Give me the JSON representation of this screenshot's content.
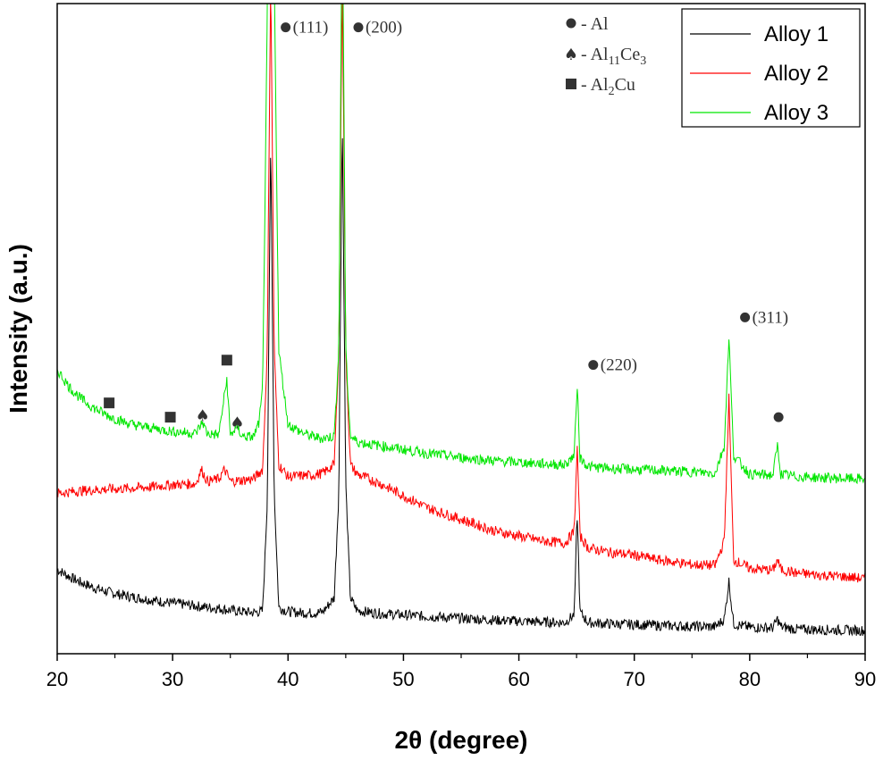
{
  "chart_data": {
    "type": "line",
    "xlabel": "2θ (degree)",
    "ylabel": "Intensity (a.u.)",
    "xlim": [
      20,
      90
    ],
    "x_ticks": [
      "20",
      "30",
      "40",
      "50",
      "60",
      "70",
      "80",
      "90"
    ],
    "y_ticks_labeled": false,
    "grid": false,
    "legend_position": "top-right",
    "series": [
      {
        "name": "Alloy 1",
        "color": "#000000",
        "x": [
          20,
          21,
          22,
          23,
          24,
          25,
          26,
          27,
          28,
          29,
          30,
          31,
          32,
          33,
          34,
          35,
          36,
          37,
          37.8,
          38.2,
          38.5,
          38.8,
          39.2,
          40,
          41,
          42,
          43,
          44,
          44.4,
          44.7,
          45,
          45.4,
          46,
          48,
          50,
          52,
          55,
          58,
          60,
          62,
          64,
          64.8,
          65.05,
          65.3,
          66,
          68,
          70,
          72,
          75,
          77,
          77.8,
          78.2,
          78.6,
          80,
          82,
          82.4,
          82.7,
          84,
          86,
          88,
          90
        ],
        "y": [
          14,
          12.5,
          11.3,
          10.3,
          9.5,
          8.9,
          8.4,
          8,
          7.6,
          7.2,
          6.9,
          6.6,
          6.3,
          6,
          5.8,
          5.4,
          5.1,
          4.9,
          5.2,
          28,
          105,
          30,
          6,
          5.1,
          4.9,
          4.8,
          5,
          8,
          30,
          110,
          32,
          8,
          5.3,
          4.7,
          4.4,
          4.1,
          3.7,
          3.3,
          3.1,
          2.9,
          2.8,
          4.5,
          26,
          5,
          2.8,
          2.5,
          2.4,
          2.2,
          2,
          1.9,
          3.5,
          11.5,
          2.5,
          1.8,
          1.7,
          3.5,
          1.9,
          1.4,
          1.3,
          1.2,
          1.1
        ]
      },
      {
        "name": "Alloy 2",
        "color": "#ff0000",
        "x": [
          20,
          22,
          24,
          26,
          28,
          30,
          32,
          32.5,
          33,
          34,
          34.5,
          35,
          36,
          37,
          37.8,
          38.2,
          38.5,
          38.8,
          39.2,
          40,
          42,
          43,
          44,
          44.4,
          44.7,
          45,
          45.4,
          46,
          48,
          50,
          52,
          55,
          58,
          60,
          62,
          64,
          64.8,
          65.05,
          65.3,
          66,
          68,
          70,
          72,
          75,
          77,
          77.8,
          78.2,
          78.6,
          80,
          82,
          82.4,
          82.7,
          84,
          86,
          88,
          90
        ],
        "y": [
          30,
          30.5,
          30.8,
          31,
          31.3,
          31.8,
          32,
          35,
          32.5,
          33,
          35,
          32.5,
          32.7,
          33,
          35,
          60,
          140,
          60,
          36,
          33.5,
          33.8,
          34.2,
          36,
          60,
          140,
          60,
          36,
          34,
          32,
          29.5,
          27,
          24.5,
          22,
          21,
          20,
          19.5,
          22,
          40,
          21,
          18.5,
          17.5,
          17,
          16,
          15,
          14.8,
          20,
          50,
          16,
          14.2,
          13.8,
          16,
          14,
          13.2,
          12.8,
          12.5,
          12
        ]
      },
      {
        "name": "Alloy 3",
        "color": "#00e600",
        "x": [
          20,
          21,
          22,
          23,
          24,
          25,
          26,
          27,
          28,
          29,
          30,
          31,
          32,
          32.6,
          33,
          34,
          34.7,
          35,
          35.6,
          36,
          37,
          37.5,
          37.8,
          38.2,
          38.5,
          38.8,
          39.2,
          40,
          41,
          42,
          43,
          44,
          44.4,
          44.7,
          45,
          45.4,
          46,
          48,
          50,
          52,
          55,
          58,
          60,
          62,
          64,
          64.8,
          65.05,
          65.3,
          66,
          68,
          70,
          72,
          75,
          77,
          77.8,
          78.2,
          78.6,
          80,
          82,
          82.4,
          82.7,
          84,
          86,
          88,
          90
        ],
        "y": [
          56,
          52.5,
          50,
          48.2,
          46.8,
          45.7,
          44.8,
          44.2,
          43.8,
          43.4,
          43,
          42.8,
          42.6,
          45,
          42.5,
          42.3,
          54,
          42.2,
          44,
          42,
          41.8,
          45,
          52,
          130,
          240,
          140,
          60,
          44.5,
          43,
          42,
          41.5,
          42,
          60,
          160,
          60,
          42,
          40.8,
          40,
          39.2,
          38.4,
          37.5,
          36.8,
          36.5,
          36.2,
          36,
          38,
          53,
          37.5,
          35.6,
          35.2,
          35,
          34.8,
          34.5,
          34.2,
          40,
          63,
          38,
          34,
          33.8,
          40,
          34,
          33.5,
          33.3,
          33.1,
          33
        ]
      }
    ],
    "y_range": [
      0,
      130
    ],
    "annotations": [
      {
        "marker": "circle",
        "text": "(111)",
        "x": 38.4,
        "y": 128
      },
      {
        "marker": "circle",
        "text": "(200)",
        "x": 44.7,
        "y": 128
      },
      {
        "marker": "circle",
        "text": "(220)",
        "x": 65.05,
        "y": 57
      },
      {
        "marker": "circle",
        "text": "(311)",
        "x": 78.2,
        "y": 67
      },
      {
        "marker": "circle",
        "text": "",
        "x": 82.5,
        "y": 46
      },
      {
        "marker": "square",
        "text": "",
        "x": 24.5,
        "y": 49
      },
      {
        "marker": "square",
        "text": "",
        "x": 29.8,
        "y": 46
      },
      {
        "marker": "square",
        "text": "",
        "x": 34.7,
        "y": 58
      },
      {
        "marker": "spade",
        "text": "",
        "x": 32.6,
        "y": 46.5
      },
      {
        "marker": "spade",
        "text": "",
        "x": 35.6,
        "y": 45
      }
    ],
    "phase_key": [
      {
        "marker": "circle",
        "label": "Al",
        "prefix": " - ",
        "sub1": "",
        "mid": "",
        "sub2": ""
      },
      {
        "marker": "spade",
        "label": "Al",
        "prefix": " - ",
        "sub1": "11",
        "mid": "Ce",
        "sub2": "3"
      },
      {
        "marker": "square",
        "label": "Al",
        "prefix": " - ",
        "sub1": "2",
        "mid": "Cu",
        "sub2": ""
      }
    ]
  }
}
